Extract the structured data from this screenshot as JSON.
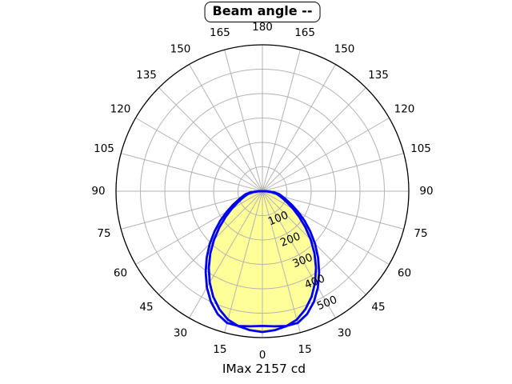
{
  "header": {
    "title": "Beam angle --"
  },
  "footer": {
    "caption": "IMax 2157 cd"
  },
  "colors": {
    "background": "#ffffff",
    "fill": "#ffff99",
    "curve": "#0000ee",
    "grid": "#b3b3b3",
    "outer_circle": "#000000",
    "label_text": "#000000"
  },
  "chart_data": {
    "type": "polar",
    "subtype": "luminous-intensity-distribution",
    "title": "Beam angle --",
    "caption": "IMax 2157 cd",
    "imax_cd": 2157,
    "r_max": 600,
    "radial_tick_labels": [
      100,
      200,
      300,
      400,
      500
    ],
    "radial_label_angle_deg": 30,
    "angle_tick_labels_deg": [
      0,
      15,
      30,
      45,
      60,
      75,
      90,
      105,
      120,
      135,
      150,
      165,
      180
    ],
    "angle_grid_step_deg": 15,
    "grid": "on",
    "legend": "none",
    "gamma_deg": [
      0,
      5,
      10,
      15,
      20,
      25,
      30,
      35,
      40,
      45,
      50,
      55,
      60,
      65,
      70,
      75,
      80,
      85,
      90,
      95
    ],
    "series": [
      {
        "name": "curve-1",
        "filled": true,
        "values": [
          577,
          572,
          562,
          545,
          515,
          477,
          432,
          383,
          332,
          280,
          230,
          185,
          146,
          114,
          90,
          72,
          58,
          38,
          12,
          0
        ]
      },
      {
        "name": "curve-2",
        "filled": false,
        "values": [
          552,
          556,
          561,
          559,
          536,
          500,
          455,
          405,
          355,
          305,
          256,
          210,
          168,
          133,
          105,
          85,
          70,
          48,
          18,
          0
        ]
      }
    ]
  }
}
